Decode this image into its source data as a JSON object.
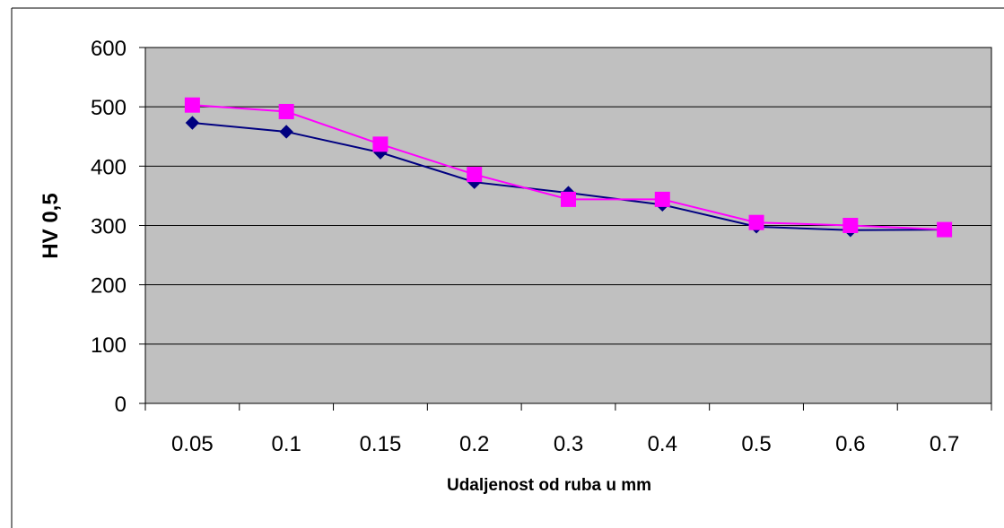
{
  "chart_data": {
    "type": "line",
    "title": "",
    "xlabel": "Udaljenost od ruba u mm",
    "ylabel": "HV 0,5",
    "categories": [
      "0.05",
      "0.1",
      "0.15",
      "0.2",
      "0.3",
      "0.4",
      "0.5",
      "0.6",
      "0.7"
    ],
    "ylim": [
      0,
      600
    ],
    "yticks": [
      "0",
      "100",
      "200",
      "300",
      "400",
      "500",
      "600"
    ],
    "grid": true,
    "legend": "none",
    "series": [
      {
        "values": [
          473,
          458,
          423,
          373,
          355,
          335,
          298,
          292,
          293
        ],
        "color": "#000080",
        "marker": "diamond"
      },
      {
        "values": [
          503,
          492,
          437,
          386,
          344,
          344,
          305,
          300,
          293
        ],
        "color": "#ff00ff",
        "marker": "square"
      }
    ],
    "colors": {
      "plot_background": "#c0c0c0",
      "gridline": "#000000",
      "frame": "#000000"
    }
  }
}
